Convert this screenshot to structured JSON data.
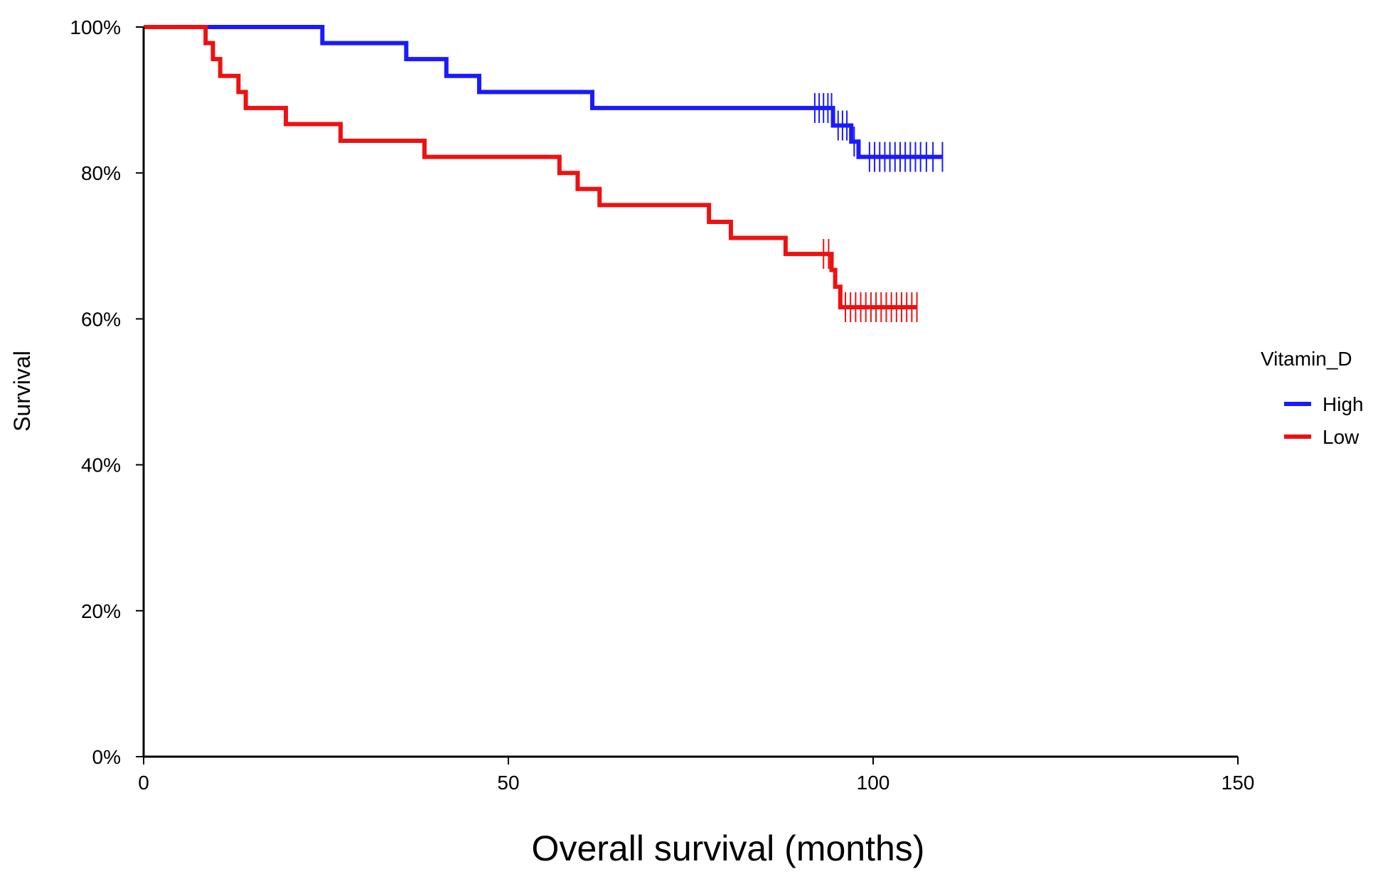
{
  "chart_data": {
    "type": "line",
    "subtype": "kaplan-meier",
    "title": "",
    "xlabel": "Overall survival (months)",
    "ylabel": "Survival",
    "xlim": [
      0,
      150
    ],
    "ylim": [
      0,
      100
    ],
    "xticks": [
      0,
      50,
      100,
      150
    ],
    "xtick_labels": [
      "0",
      "50",
      "100",
      "150"
    ],
    "yticks": [
      0,
      20,
      40,
      60,
      80,
      100
    ],
    "ytick_labels": [
      "0%",
      "20%",
      "40%",
      "60%",
      "80%",
      "100%"
    ],
    "grid": false,
    "legend": {
      "title": "Vitamin_D",
      "position": "right"
    },
    "series": [
      {
        "name": "High",
        "color": "#1a1aff",
        "steps": [
          [
            0,
            100
          ],
          [
            24.5,
            97.8
          ],
          [
            36,
            95.6
          ],
          [
            41.5,
            93.3
          ],
          [
            46,
            91.1
          ],
          [
            61.5,
            88.9
          ],
          [
            94.5,
            86.5
          ],
          [
            97,
            84.3
          ],
          [
            98,
            82.2
          ]
        ],
        "end_x": 109.5,
        "censor_marks": [
          [
            92,
            88.9
          ],
          [
            92.6,
            88.9
          ],
          [
            93.2,
            88.9
          ],
          [
            93.8,
            88.9
          ],
          [
            94.3,
            88.9
          ],
          [
            95.2,
            86.5
          ],
          [
            95.8,
            86.5
          ],
          [
            96.4,
            86.5
          ],
          [
            97.4,
            84.3
          ],
          [
            99.5,
            82.2
          ],
          [
            100.2,
            82.2
          ],
          [
            100.9,
            82.2
          ],
          [
            101.6,
            82.2
          ],
          [
            102.3,
            82.2
          ],
          [
            103,
            82.2
          ],
          [
            103.7,
            82.2
          ],
          [
            104.4,
            82.2
          ],
          [
            105.1,
            82.2
          ],
          [
            105.8,
            82.2
          ],
          [
            106.5,
            82.2
          ],
          [
            107.3,
            82.2
          ],
          [
            108.2,
            82.2
          ],
          [
            109.5,
            82.2
          ]
        ]
      },
      {
        "name": "Low",
        "color": "#ee1111",
        "steps": [
          [
            0,
            100
          ],
          [
            8.5,
            97.8
          ],
          [
            9.5,
            95.6
          ],
          [
            10.5,
            93.3
          ],
          [
            13,
            91.1
          ],
          [
            14,
            88.9
          ],
          [
            19.5,
            86.7
          ],
          [
            27,
            84.4
          ],
          [
            38.5,
            82.2
          ],
          [
            57,
            80.0
          ],
          [
            59.5,
            77.8
          ],
          [
            62.5,
            75.6
          ],
          [
            77.5,
            73.3
          ],
          [
            80.5,
            71.1
          ],
          [
            88,
            68.9
          ],
          [
            94.3,
            66.7
          ],
          [
            94.8,
            64.4
          ],
          [
            95.5,
            61.6
          ]
        ],
        "end_x": 106,
        "censor_marks": [
          [
            93.2,
            68.9
          ],
          [
            93.9,
            68.9
          ],
          [
            96.2,
            61.6
          ],
          [
            96.9,
            61.6
          ],
          [
            97.6,
            61.6
          ],
          [
            98.3,
            61.6
          ],
          [
            99,
            61.6
          ],
          [
            99.7,
            61.6
          ],
          [
            100.4,
            61.6
          ],
          [
            101.1,
            61.6
          ],
          [
            101.8,
            61.6
          ],
          [
            102.5,
            61.6
          ],
          [
            103.2,
            61.6
          ],
          [
            103.9,
            61.6
          ],
          [
            104.6,
            61.6
          ],
          [
            105.3,
            61.6
          ],
          [
            106,
            61.6
          ]
        ]
      }
    ]
  }
}
